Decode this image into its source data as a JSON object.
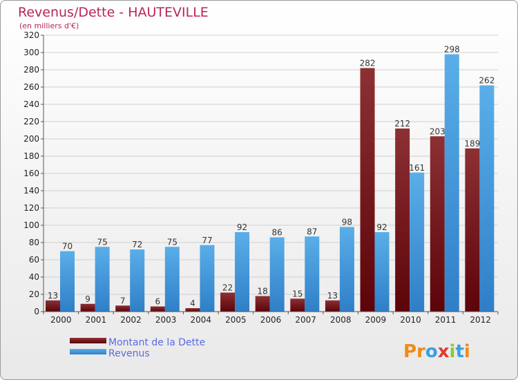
{
  "chart_data": {
    "type": "bar",
    "title": "Revenus/Dette - HAUTEVILLE",
    "subtitle": "(en milliers d'€)",
    "categories": [
      "2000",
      "2001",
      "2002",
      "2003",
      "2004",
      "2005",
      "2006",
      "2007",
      "2008",
      "2009",
      "2010",
      "2011",
      "2012"
    ],
    "series": [
      {
        "name": "Montant de la Dette",
        "color": "#7a0f14",
        "values": [
          13,
          9,
          7,
          6,
          4,
          22,
          18,
          15,
          13,
          282,
          212,
          203,
          189
        ]
      },
      {
        "name": "Revenus",
        "color": "#3d94d8",
        "values": [
          70,
          75,
          72,
          75,
          77,
          92,
          86,
          87,
          98,
          92,
          161,
          298,
          262
        ]
      }
    ],
    "ylim": [
      0,
      320
    ],
    "ytick_step": 20,
    "grid": true,
    "legend_position": "bottom-left"
  },
  "logo": {
    "text": "Proxiti",
    "letters": [
      "P",
      "r",
      "o",
      "x",
      "i",
      "t",
      "i"
    ],
    "colors": [
      "#f08a1c",
      "#f08a1c",
      "#3aa0e0",
      "#e23b2f",
      "#8cc63f",
      "#3aa0e0",
      "#f08a1c"
    ]
  }
}
